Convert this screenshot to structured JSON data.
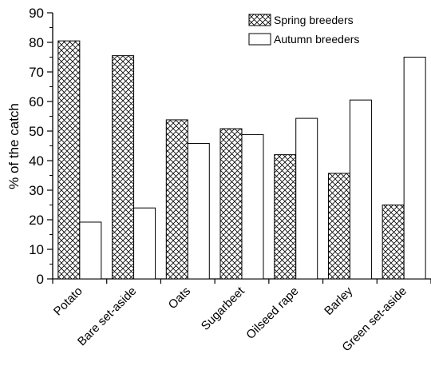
{
  "chart_data": {
    "type": "bar",
    "title": "",
    "xlabel": "",
    "ylabel": "% of the catch",
    "ylim": [
      0,
      90
    ],
    "yticks": [
      0,
      10,
      20,
      30,
      40,
      50,
      60,
      70,
      80,
      90
    ],
    "categories": [
      "Potato",
      "Bare set-aside",
      "Oats",
      "Sugarbeet",
      "Oilseed rape",
      "Barley",
      "Green set-aside"
    ],
    "series": [
      {
        "name": "Spring breeders",
        "values": [
          80.5,
          75.5,
          53.8,
          50.8,
          42.0,
          35.7,
          25.0
        ],
        "fill": "crosshatch"
      },
      {
        "name": "Autumn breeders",
        "values": [
          19.2,
          24.0,
          45.8,
          48.8,
          54.3,
          60.5,
          75.0
        ],
        "fill": "white"
      }
    ],
    "legend_position": "top-right",
    "grid": false,
    "colors": {
      "stroke": "#000000",
      "background": "#ffffff"
    }
  }
}
